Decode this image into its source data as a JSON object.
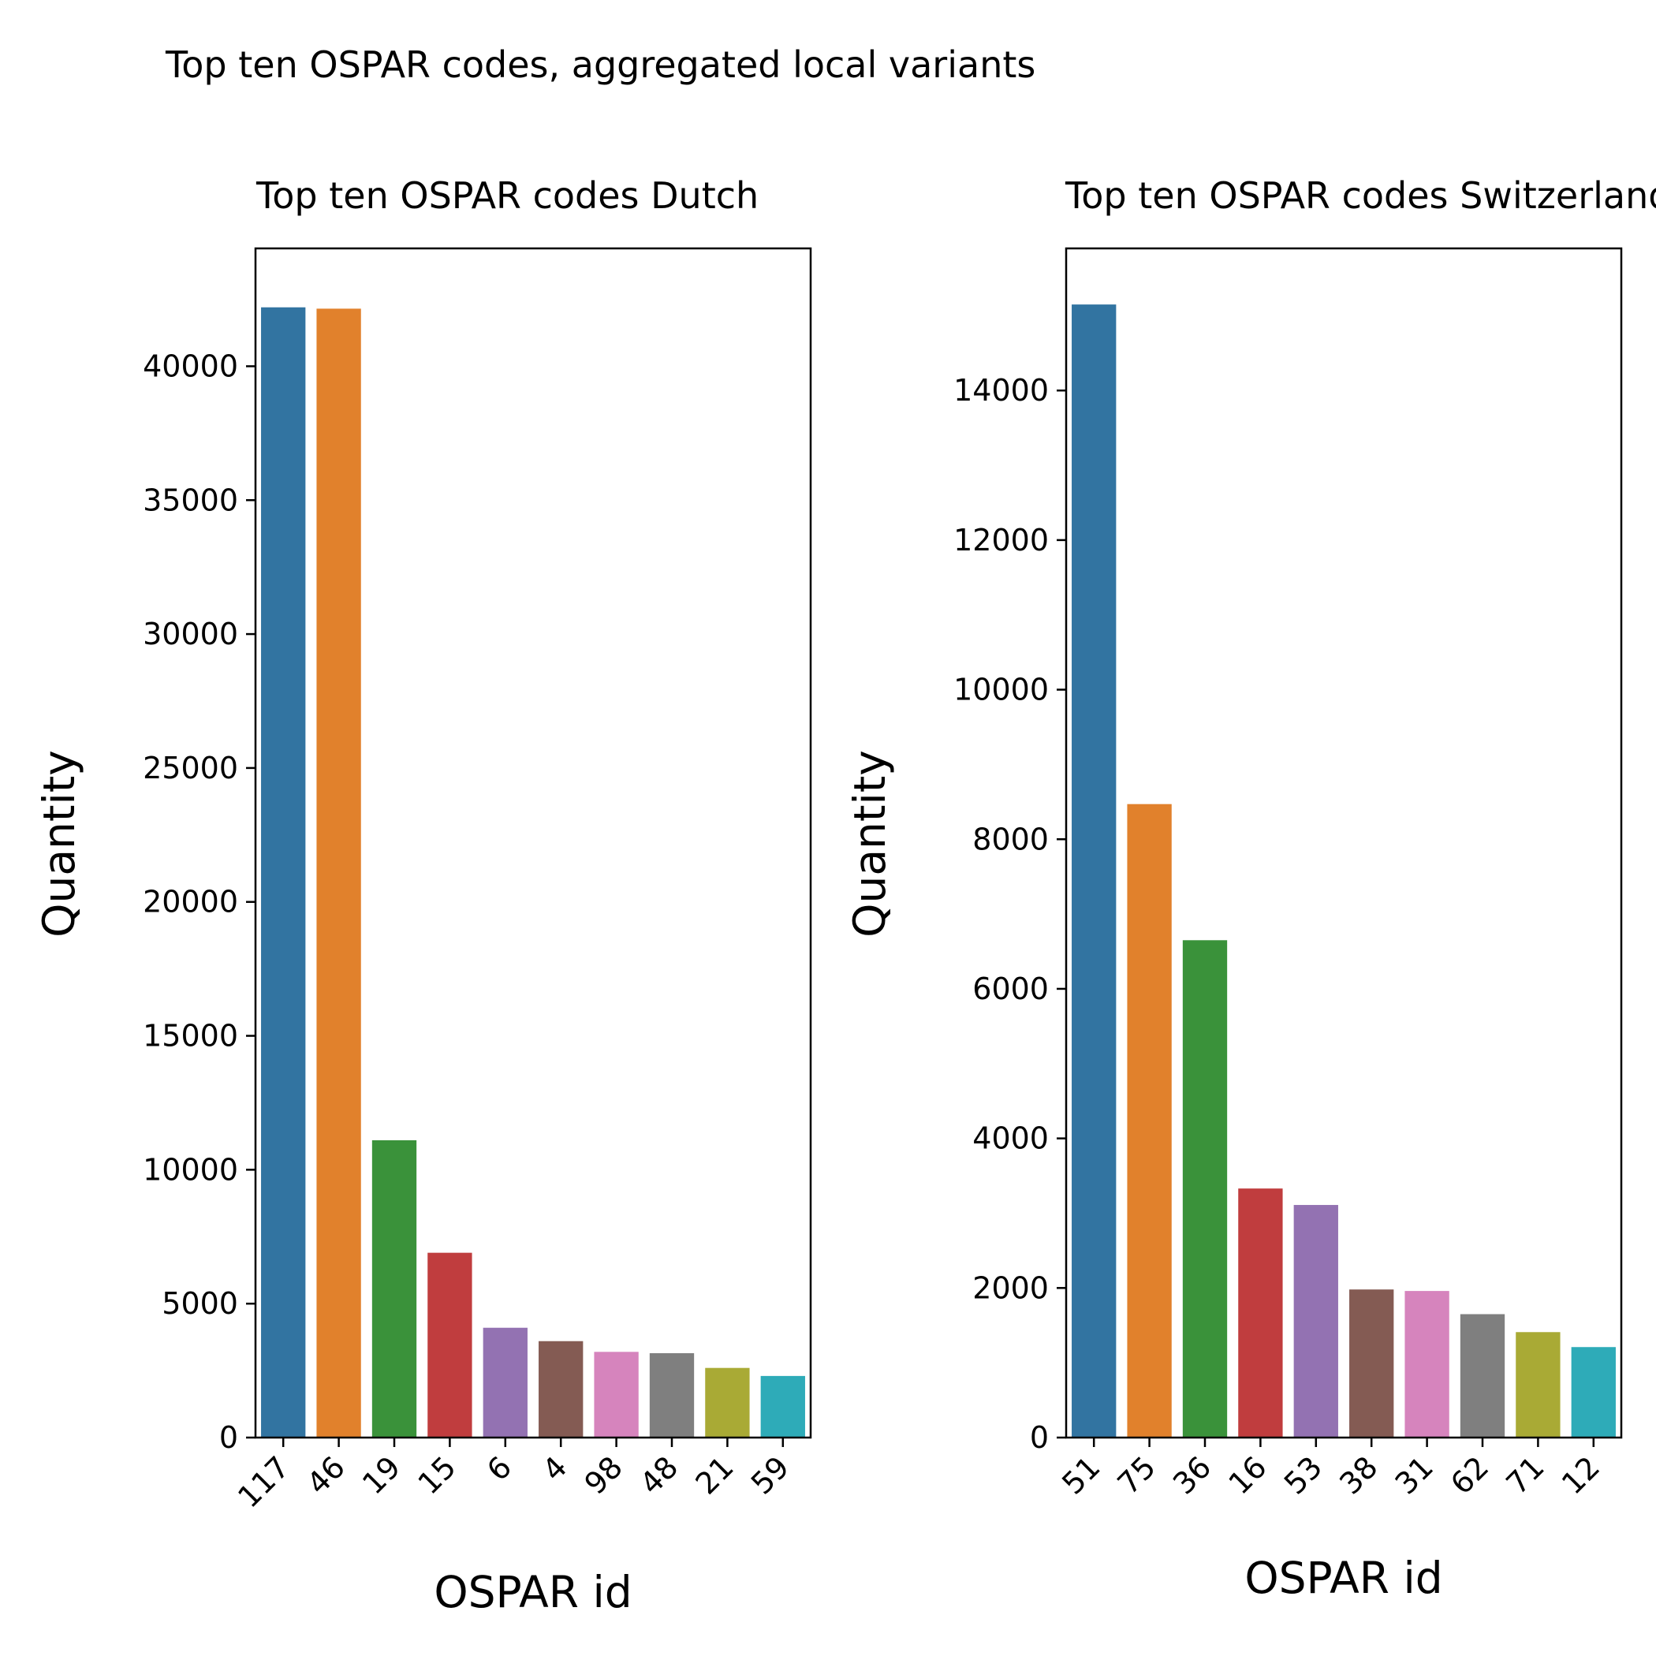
{
  "figure": {
    "suptitle": "Top ten OSPAR codes, aggregated local variants"
  },
  "palette": [
    "#3274a1",
    "#e1812c",
    "#3a923a",
    "#c03d3e",
    "#9372b2",
    "#845b53",
    "#d684bd",
    "#7f7f7f",
    "#a9aa35",
    "#2eabb8"
  ],
  "chart_data": [
    {
      "type": "bar",
      "title": "Top ten OSPAR codes Dutch",
      "xlabel": "OSPAR id",
      "ylabel": "Quantity",
      "categories": [
        "117",
        "46",
        "19",
        "15",
        "6",
        "4",
        "98",
        "48",
        "21",
        "59"
      ],
      "values": [
        42200,
        42150,
        11100,
        6900,
        4100,
        3600,
        3200,
        3150,
        2600,
        2300
      ],
      "ylim": [
        0,
        44400
      ],
      "yticks": [
        "0",
        "5000",
        "10000",
        "15000",
        "20000",
        "25000",
        "30000",
        "35000",
        "40000"
      ],
      "ytick_values": [
        0,
        5000,
        10000,
        15000,
        20000,
        25000,
        30000,
        35000,
        40000
      ],
      "grid": false
    },
    {
      "type": "bar",
      "title": "Top ten OSPAR codes Switzerland",
      "xlabel": "OSPAR id",
      "ylabel": "Quantity",
      "categories": [
        "51",
        "75",
        "36",
        "16",
        "53",
        "38",
        "31",
        "62",
        "71",
        "12"
      ],
      "values": [
        15150,
        8470,
        6650,
        3330,
        3110,
        1980,
        1960,
        1650,
        1410,
        1210
      ],
      "ylim": [
        0,
        15900
      ],
      "yticks": [
        "0",
        "2000",
        "4000",
        "6000",
        "8000",
        "10000",
        "12000",
        "14000"
      ],
      "ytick_values": [
        0,
        2000,
        4000,
        6000,
        8000,
        10000,
        12000,
        14000
      ],
      "grid": false
    }
  ]
}
